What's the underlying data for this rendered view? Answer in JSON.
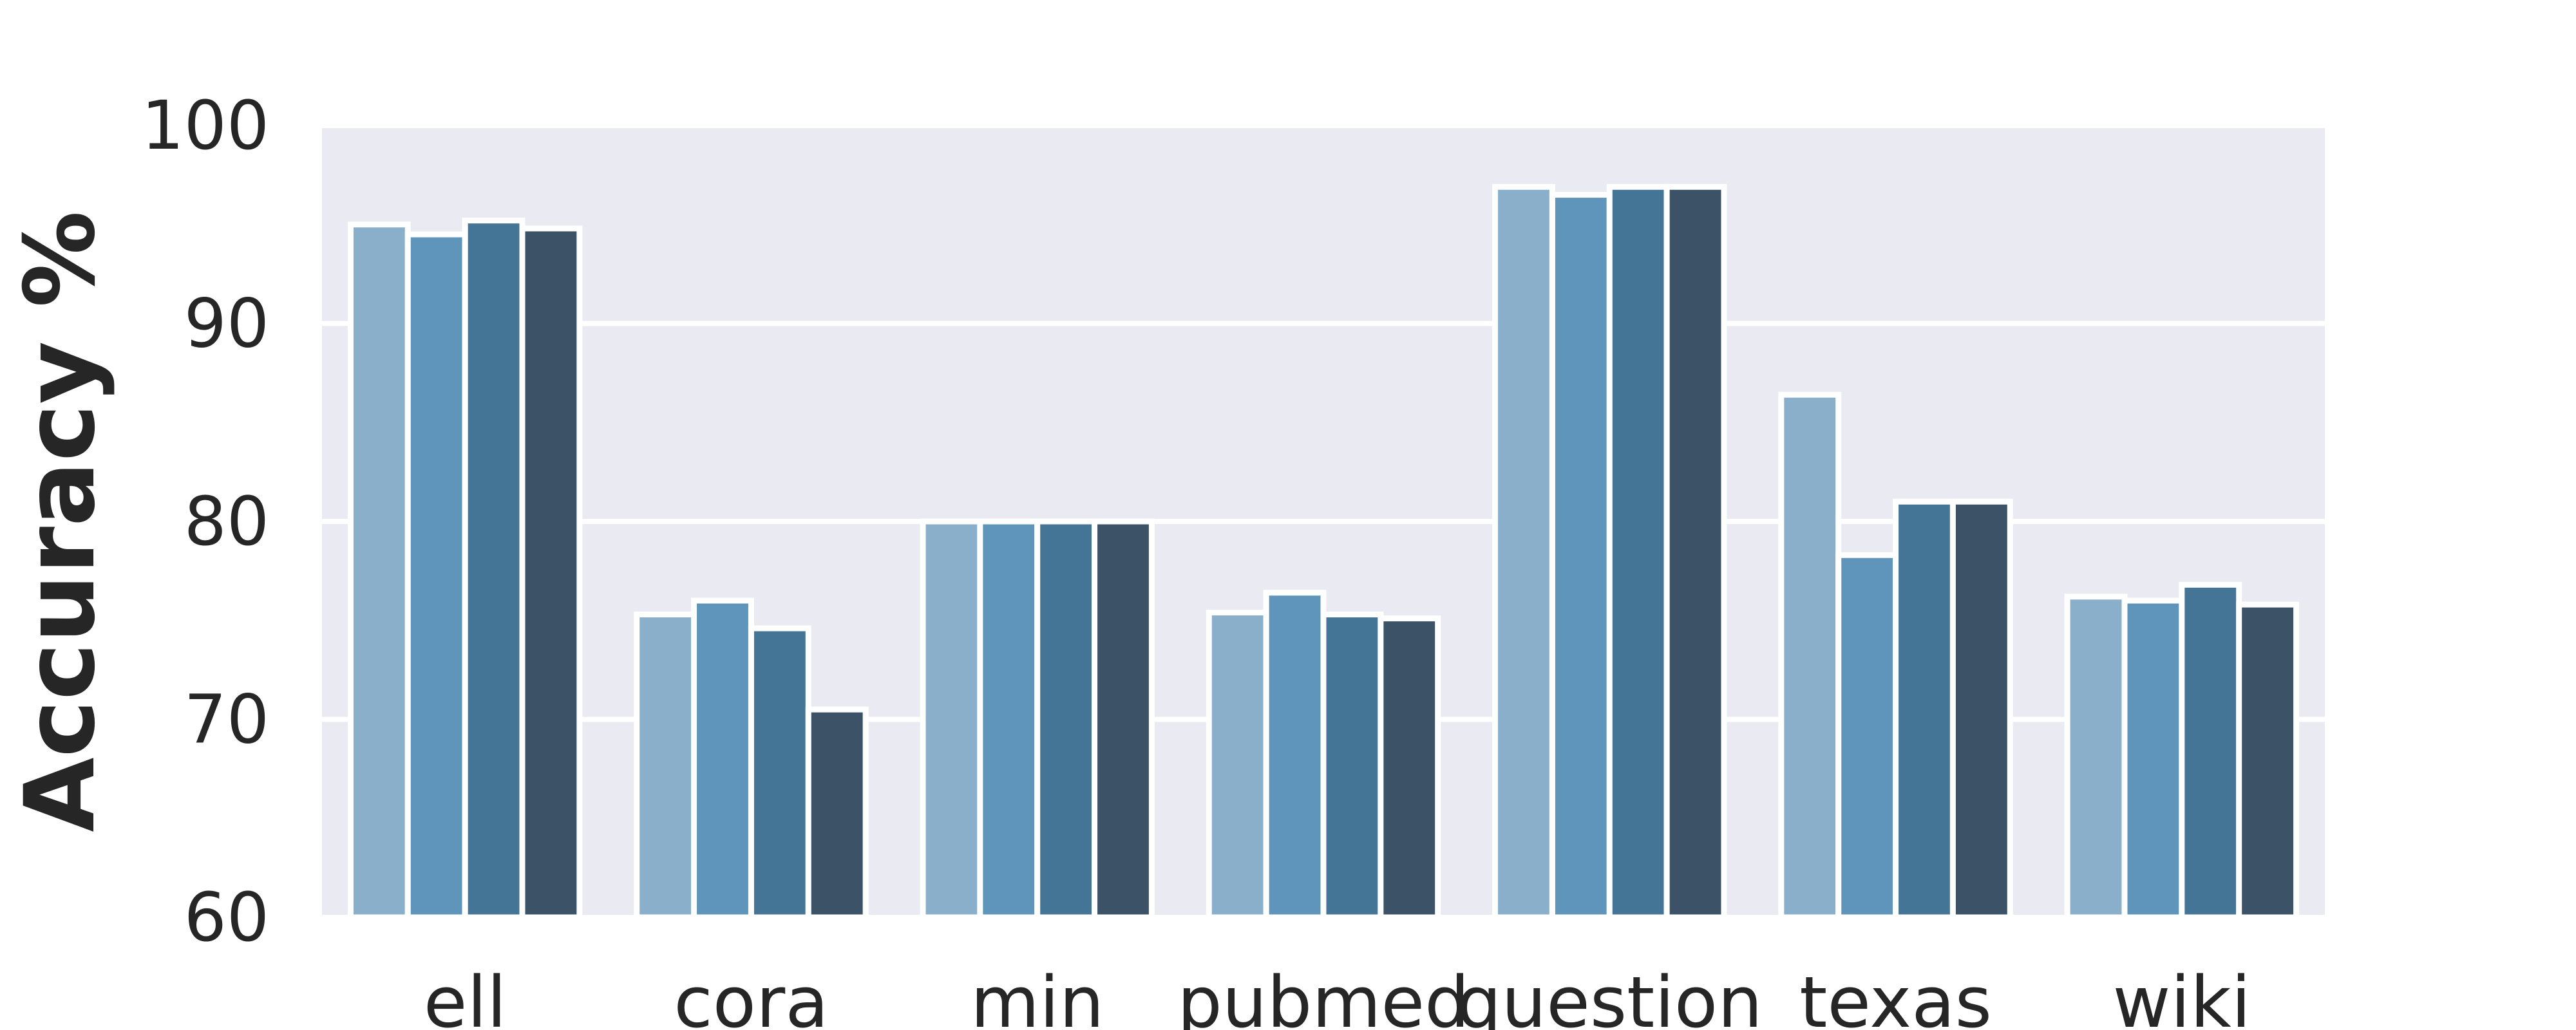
{
  "chart_data": {
    "type": "bar",
    "title": "",
    "xlabel": "",
    "ylabel": "Accuracy %",
    "ylim": [
      60,
      100
    ],
    "yticks": [
      "60",
      "70",
      "80",
      "90",
      "100"
    ],
    "grid": true,
    "legend": "none",
    "categories": [
      "ell",
      "cora",
      "min",
      "pubmed",
      "question",
      "texas",
      "wiki"
    ],
    "series": [
      {
        "color": "#8aafca",
        "values": [
          95.0,
          75.3,
          80.0,
          75.4,
          96.9,
          86.4,
          76.2
        ]
      },
      {
        "color": "#5f95bb",
        "values": [
          94.5,
          76.0,
          80.0,
          76.4,
          96.5,
          78.3,
          76.0
        ]
      },
      {
        "color": "#457596",
        "values": [
          95.2,
          74.6,
          80.0,
          75.3,
          96.9,
          81.0,
          76.8
        ]
      },
      {
        "color": "#3c5367",
        "values": [
          94.8,
          70.5,
          80.0,
          75.1,
          96.9,
          81.0,
          75.8
        ]
      }
    ]
  }
}
